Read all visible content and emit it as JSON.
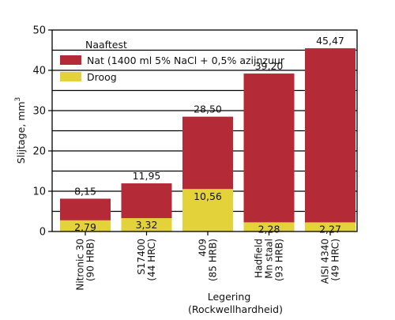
{
  "chart_data": {
    "type": "bar",
    "stacked": true,
    "categories": [
      [
        "Nitronic 30",
        "(90 HRB)"
      ],
      [
        "S17400",
        "(44 HRC)"
      ],
      [
        "409",
        "(85 HRB)"
      ],
      [
        "Hadfield",
        "Mn staal",
        "(93 HRB)"
      ],
      [
        "AISI 4340",
        "(49 HRC)"
      ]
    ],
    "series": [
      {
        "name": "Droog",
        "values": [
          2.79,
          3.32,
          10.56,
          2.28,
          2.27
        ],
        "labels": [
          "2,79",
          "3,32",
          "10,56",
          "2,28",
          "2,27"
        ]
      },
      {
        "name": "Nat (1400 ml 5% NaCl + 0,5% azijnzuur",
        "values": [
          8.15,
          11.95,
          28.5,
          39.2,
          45.47
        ],
        "labels": [
          "8,15",
          "11,95",
          "28,50",
          "39,20",
          "45,47"
        ]
      }
    ],
    "legend_title": "Naaftest",
    "legend_position": "top-left",
    "ylabel": "Slijtage, mm",
    "ylabel_superscript": "3",
    "xlabel_line1": "Legering",
    "xlabel_line2": "(Rockwellhardheid)",
    "ylim": [
      0,
      50
    ],
    "yticks": [
      0,
      10,
      20,
      30,
      40,
      50
    ],
    "grid": "horizontal",
    "colors": {
      "nat": "#b52a37",
      "droog": "#e3d23a",
      "grid": "#000000"
    }
  }
}
